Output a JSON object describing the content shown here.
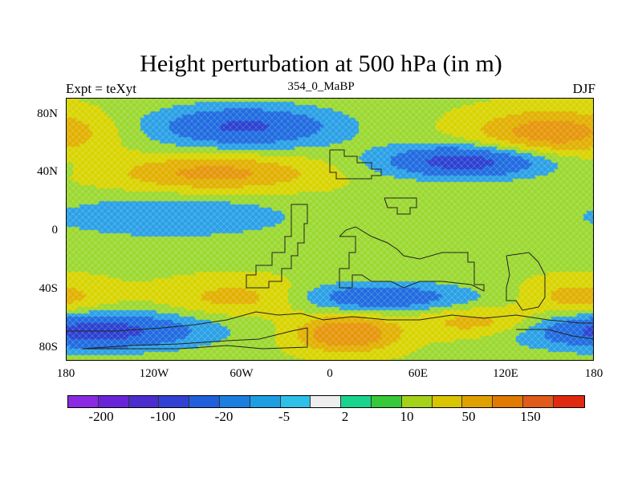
{
  "title": "Height perturbation at 500 hPa (in m)",
  "subtitle_left": "Expt = teXyt",
  "subtitle_center": "354_0_MaBP",
  "subtitle_right": "DJF",
  "y_ticks": [
    "80N",
    "40N",
    "0",
    "40S",
    "80S"
  ],
  "x_ticks": [
    "180",
    "120W",
    "60W",
    "0",
    "60E",
    "120E",
    "180"
  ],
  "colorbar": {
    "colors": [
      "#8a2be2",
      "#6a24d8",
      "#4b2ccf",
      "#3141d4",
      "#1f5fdb",
      "#1c7fe0",
      "#1d9ee3",
      "#2ec0e8",
      "#eeeeee",
      "#19d48c",
      "#38c93a",
      "#a4d11a",
      "#d8c400",
      "#e0a000",
      "#e07a00",
      "#e05a1a",
      "#e02a10"
    ],
    "labels": [
      "-200",
      "-100",
      "-20",
      "-5",
      "2",
      "10",
      "50",
      "150"
    ]
  },
  "chart_data": {
    "type": "heatmap",
    "title": "Height perturbation at 500 hPa (in m)",
    "subtitle": "354_0_MaBP",
    "season": "DJF",
    "experiment": "teXyt",
    "x_range": [
      -180,
      180
    ],
    "y_range": [
      -90,
      90
    ],
    "levels": [
      -200,
      -100,
      -20,
      -5,
      2,
      10,
      50,
      150
    ],
    "features": [
      {
        "region": "northern high latitudes 60N-80N",
        "sign": "negative",
        "center_lon": -60
      },
      {
        "region": "northern high latitudes 60N-75N",
        "sign": "positive",
        "center_lon": 150
      },
      {
        "region": "northern mid latitudes 40N",
        "sign": "positive",
        "center_lon": -70
      },
      {
        "region": "northern mid latitudes 40N-55N",
        "sign": "negative",
        "center_lon": 90
      },
      {
        "region": "tropics 0-20N",
        "sign": "negative",
        "center_lon": -110
      },
      {
        "region": "southern mid latitudes 40S-50S",
        "sign": "negative",
        "center_lon": 30
      },
      {
        "region": "southern high latitudes 60S-75S",
        "sign": "negative",
        "center_lon": -160
      },
      {
        "region": "southern high latitudes 60S-75S",
        "sign": "positive",
        "center_lon": 10
      }
    ]
  }
}
